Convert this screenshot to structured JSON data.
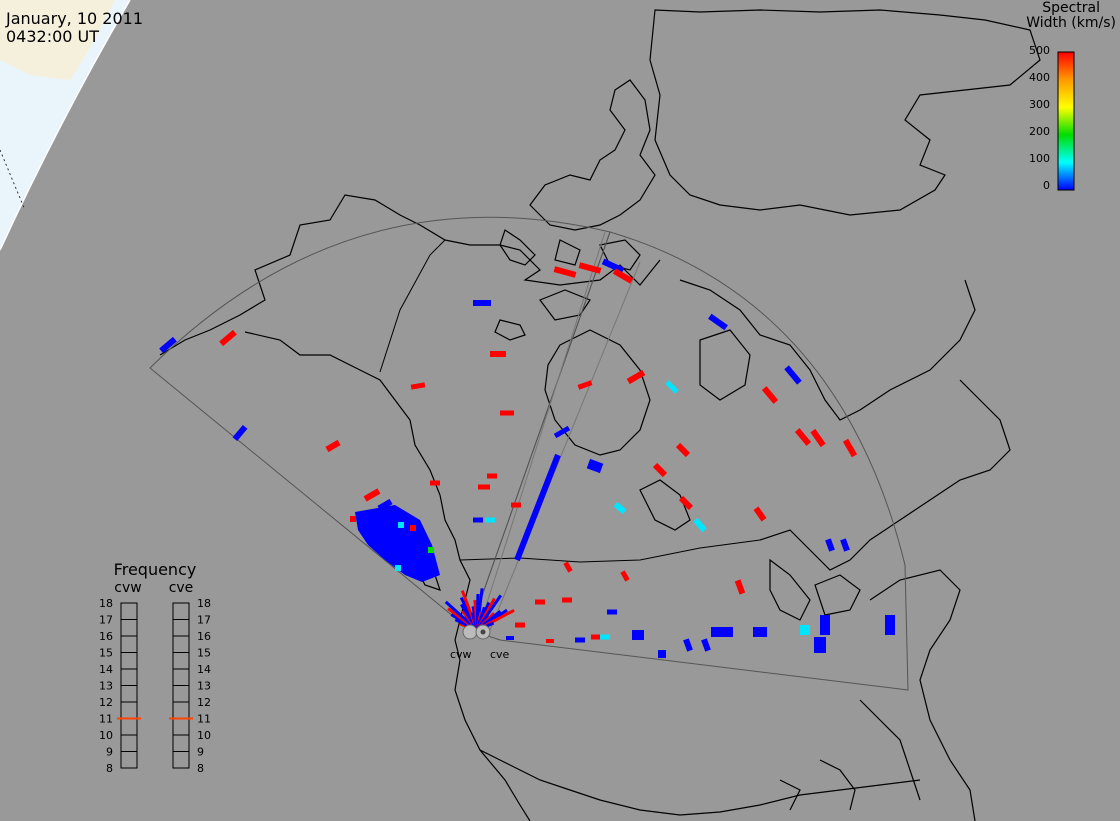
{
  "header": {
    "date": "January, 10 2011",
    "time": "0432:00 UT"
  },
  "colorbar": {
    "title_line1": "Spectral",
    "title_line2": "Width (km/s)",
    "ticks": [
      "500",
      "400",
      "300",
      "200",
      "100",
      "0"
    ],
    "colors": [
      "#ff0000",
      "#ff9900",
      "#ffff00",
      "#00dd00",
      "#00ffff",
      "#0000ff"
    ]
  },
  "radars": [
    {
      "code": "cvw"
    },
    {
      "code": "cve"
    }
  ],
  "frequency": {
    "title": "Frequency",
    "labels": [
      "18",
      "17",
      "16",
      "15",
      "14",
      "13",
      "12",
      "11",
      "10",
      "9",
      "8"
    ],
    "cvw_value": 11,
    "cve_value": 11,
    "marker_color": "#ff4400"
  },
  "colors": {
    "background": "#999999",
    "land_outline": "#000000",
    "daylight": "#f5f0dc",
    "daylight_sea": "#eaf4fb",
    "fov_outline": "#555555",
    "low_width": "#0000ff",
    "high_width": "#ff0000",
    "mid_width": "#00e5ff"
  }
}
